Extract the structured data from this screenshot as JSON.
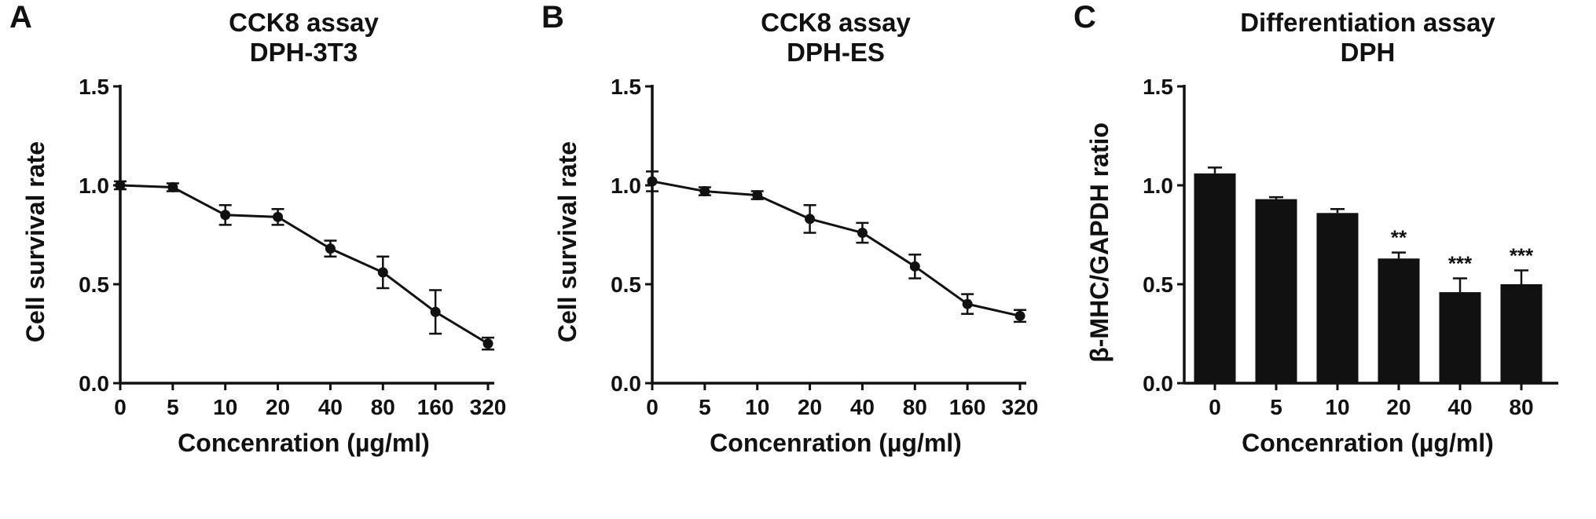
{
  "figure": {
    "background": "#ffffff",
    "ink_color": "#111111"
  },
  "chart_data": [
    {
      "type": "line",
      "panel_label": "A",
      "title": "CCK8 assay DPH-3T3",
      "title_line1": "CCK8 assay",
      "title_line2": "DPH-3T3",
      "ylabel": "Cell survival rate",
      "xlabel": "Concenration (µg/ml)",
      "categories": [
        "0",
        "5",
        "10",
        "20",
        "40",
        "80",
        "160",
        "320"
      ],
      "values": [
        1.0,
        0.99,
        0.85,
        0.84,
        0.68,
        0.56,
        0.36,
        0.2
      ],
      "errors": [
        0.02,
        0.02,
        0.05,
        0.04,
        0.04,
        0.08,
        0.11,
        0.03
      ],
      "significance": [
        "",
        "",
        "",
        "",
        "",
        "",
        "",
        ""
      ],
      "ylim": [
        0,
        1.5
      ],
      "yticks": [
        0,
        0.5,
        1,
        1.5
      ],
      "marker": "circle",
      "line_color": "#111111",
      "grid": false,
      "legend": false
    },
    {
      "type": "line",
      "panel_label": "B",
      "title": "CCK8 assay DPH-ES",
      "title_line1": "CCK8 assay",
      "title_line2": "DPH-ES",
      "ylabel": "Cell survival rate",
      "xlabel": "Concenration (µg/ml)",
      "categories": [
        "0",
        "5",
        "10",
        "20",
        "40",
        "80",
        "160",
        "320"
      ],
      "values": [
        1.02,
        0.97,
        0.95,
        0.83,
        0.76,
        0.59,
        0.4,
        0.34
      ],
      "errors": [
        0.05,
        0.02,
        0.02,
        0.07,
        0.05,
        0.06,
        0.05,
        0.03
      ],
      "significance": [
        "",
        "",
        "",
        "",
        "",
        "",
        "",
        ""
      ],
      "ylim": [
        0,
        1.5
      ],
      "yticks": [
        0,
        0.5,
        1,
        1.5
      ],
      "marker": "circle",
      "line_color": "#111111",
      "grid": false,
      "legend": false
    },
    {
      "type": "bar",
      "panel_label": "C",
      "title": "Differentiation assay DPH",
      "title_line1": "Differentiation assay",
      "title_line2": "DPH",
      "ylabel": "β-MHC/GAPDH ratio",
      "xlabel": "Concenration (µg/ml)",
      "categories": [
        "0",
        "5",
        "10",
        "20",
        "40",
        "80"
      ],
      "values": [
        1.06,
        0.93,
        0.86,
        0.63,
        0.46,
        0.5
      ],
      "errors": [
        0.03,
        0.01,
        0.02,
        0.03,
        0.07,
        0.07
      ],
      "significance": [
        "",
        "",
        "",
        "**",
        "***",
        "***"
      ],
      "ylim": [
        0,
        1.5
      ],
      "yticks": [
        0,
        0.5,
        1,
        1.5
      ],
      "bar_color": "#111111",
      "grid": false,
      "legend": false
    }
  ]
}
